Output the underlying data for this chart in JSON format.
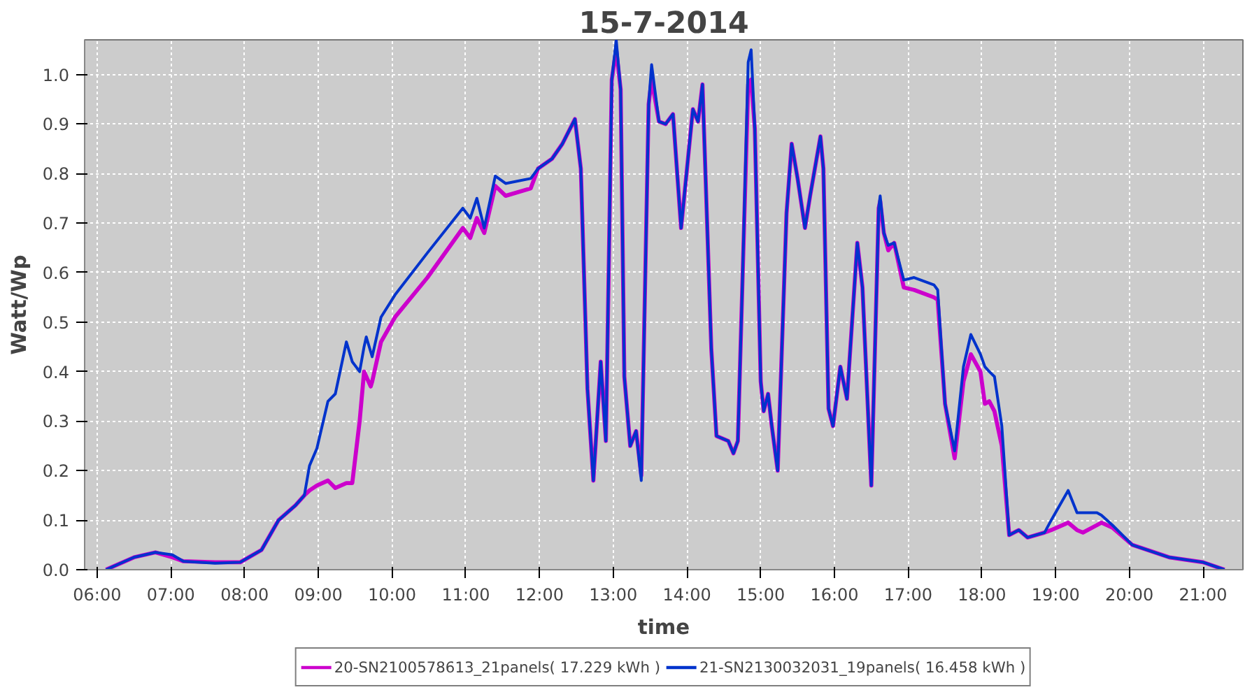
{
  "chart_data": {
    "type": "line",
    "title": "15-7-2014",
    "xlabel": "time",
    "ylabel": "Watt/Wp",
    "x": [
      6.12,
      6.5,
      6.79,
      7.02,
      7.17,
      7.6,
      7.94,
      8.23,
      8.46,
      8.69,
      8.81,
      8.88,
      8.98,
      9.13,
      9.23,
      9.38,
      9.46,
      9.56,
      9.62,
      9.65,
      9.71,
      9.73,
      9.85,
      10.04,
      10.48,
      10.96,
      11.06,
      11.15,
      11.25,
      11.4,
      11.54,
      11.88,
      11.98,
      12.17,
      12.31,
      12.48,
      12.56,
      12.65,
      12.73,
      12.83,
      12.9,
      12.98,
      13.04,
      13.1,
      13.15,
      13.23,
      13.31,
      13.38,
      13.48,
      13.52,
      13.62,
      13.71,
      13.81,
      13.92,
      14.08,
      14.15,
      14.21,
      14.33,
      14.4,
      14.56,
      14.63,
      14.69,
      14.75,
      14.83,
      14.87,
      14.92,
      15.0,
      15.04,
      15.1,
      15.15,
      15.23,
      15.35,
      15.42,
      15.5,
      15.6,
      15.67,
      15.81,
      15.85,
      15.92,
      15.98,
      16.08,
      16.17,
      16.31,
      16.38,
      16.5,
      16.6,
      16.62,
      16.67,
      16.73,
      16.81,
      16.94,
      17.08,
      17.35,
      17.4,
      17.5,
      17.63,
      17.75,
      17.85,
      17.98,
      18.04,
      18.1,
      18.17,
      18.27,
      18.37,
      18.5,
      18.62,
      18.85,
      18.94,
      19.17,
      19.29,
      19.37,
      19.56,
      19.62,
      19.77,
      20.04,
      20.54,
      21.0,
      21.29
    ],
    "series": [
      {
        "name": "20-SN2100578613_21panels( 17.229 kWh )",
        "color": "#cc00cc",
        "values": [
          0,
          0.025,
          0.035,
          0.025,
          0.017,
          0.015,
          0.015,
          0.04,
          0.1,
          0.13,
          0.15,
          0.16,
          0.17,
          0.18,
          0.165,
          0.175,
          0.175,
          0.3,
          0.4,
          0.39,
          0.37,
          0.38,
          0.46,
          0.51,
          0.59,
          0.69,
          0.67,
          0.71,
          0.68,
          0.775,
          0.755,
          0.77,
          0.81,
          0.83,
          0.86,
          0.91,
          0.81,
          0.365,
          0.18,
          0.42,
          0.26,
          0.99,
          1.05,
          0.97,
          0.39,
          0.25,
          0.28,
          0.19,
          0.94,
          0.99,
          0.905,
          0.9,
          0.92,
          0.69,
          0.93,
          0.905,
          0.98,
          0.445,
          0.27,
          0.26,
          0.235,
          0.26,
          0.57,
          0.98,
          0.99,
          0.89,
          0.38,
          0.32,
          0.355,
          0.29,
          0.2,
          0.72,
          0.86,
          0.79,
          0.69,
          0.755,
          0.875,
          0.81,
          0.325,
          0.29,
          0.41,
          0.345,
          0.66,
          0.57,
          0.17,
          0.73,
          0.745,
          0.68,
          0.645,
          0.66,
          0.57,
          0.565,
          0.55,
          0.545,
          0.335,
          0.225,
          0.38,
          0.435,
          0.4,
          0.335,
          0.34,
          0.32,
          0.25,
          0.07,
          0.08,
          0.065,
          0.075,
          0.08,
          0.095,
          0.08,
          0.075,
          0.09,
          0.095,
          0.085,
          0.05,
          0.025,
          0.015,
          0
        ]
      },
      {
        "name": "21-SN2130032031_19panels( 16.458 kWh )",
        "color": "#0033cc",
        "values": [
          0,
          0.025,
          0.035,
          0.03,
          0.017,
          0.013,
          0.015,
          0.04,
          0.1,
          0.13,
          0.15,
          0.21,
          0.245,
          0.34,
          0.355,
          0.46,
          0.42,
          0.4,
          0.45,
          0.47,
          0.44,
          0.43,
          0.51,
          0.555,
          0.64,
          0.73,
          0.71,
          0.75,
          0.69,
          0.795,
          0.78,
          0.79,
          0.81,
          0.83,
          0.86,
          0.91,
          0.81,
          0.365,
          0.18,
          0.42,
          0.26,
          0.99,
          1.07,
          0.97,
          0.39,
          0.25,
          0.28,
          0.18,
          0.94,
          1.02,
          0.905,
          0.9,
          0.92,
          0.69,
          0.93,
          0.905,
          0.98,
          0.445,
          0.27,
          0.26,
          0.235,
          0.26,
          0.57,
          1.025,
          1.05,
          0.89,
          0.38,
          0.32,
          0.355,
          0.29,
          0.2,
          0.72,
          0.86,
          0.79,
          0.69,
          0.755,
          0.875,
          0.81,
          0.325,
          0.29,
          0.41,
          0.345,
          0.66,
          0.57,
          0.17,
          0.73,
          0.755,
          0.68,
          0.655,
          0.66,
          0.585,
          0.59,
          0.575,
          0.565,
          0.335,
          0.24,
          0.41,
          0.475,
          0.435,
          0.41,
          0.4,
          0.39,
          0.29,
          0.07,
          0.08,
          0.065,
          0.075,
          0.1,
          0.16,
          0.115,
          0.115,
          0.115,
          0.11,
          0.09,
          0.05,
          0.025,
          0.015,
          0
        ]
      }
    ],
    "xlim": [
      5.83,
      21.54
    ],
    "ylim": [
      0,
      1.07
    ],
    "xticks": [
      {
        "value": 6,
        "label": "06:00"
      },
      {
        "value": 7,
        "label": "07:00"
      },
      {
        "value": 8,
        "label": "08:00"
      },
      {
        "value": 9,
        "label": "09:00"
      },
      {
        "value": 10,
        "label": "10:00"
      },
      {
        "value": 11,
        "label": "11:00"
      },
      {
        "value": 12,
        "label": "12:00"
      },
      {
        "value": 13,
        "label": "13:00"
      },
      {
        "value": 14,
        "label": "14:00"
      },
      {
        "value": 15,
        "label": "15:00"
      },
      {
        "value": 16,
        "label": "16:00"
      },
      {
        "value": 17,
        "label": "17:00"
      },
      {
        "value": 18,
        "label": "18:00"
      },
      {
        "value": 19,
        "label": "19:00"
      },
      {
        "value": 20,
        "label": "20:00"
      },
      {
        "value": 21,
        "label": "21:00"
      }
    ],
    "yticks": [
      {
        "value": 0,
        "label": "0.0"
      },
      0.1,
      0.2,
      0.3,
      0.4,
      0.5,
      0.6,
      0.7,
      0.8,
      0.9,
      {
        "value": 1,
        "label": "1.0"
      }
    ],
    "grid": true,
    "legend": "bottom",
    "line_style": "solid",
    "marker": "none"
  }
}
